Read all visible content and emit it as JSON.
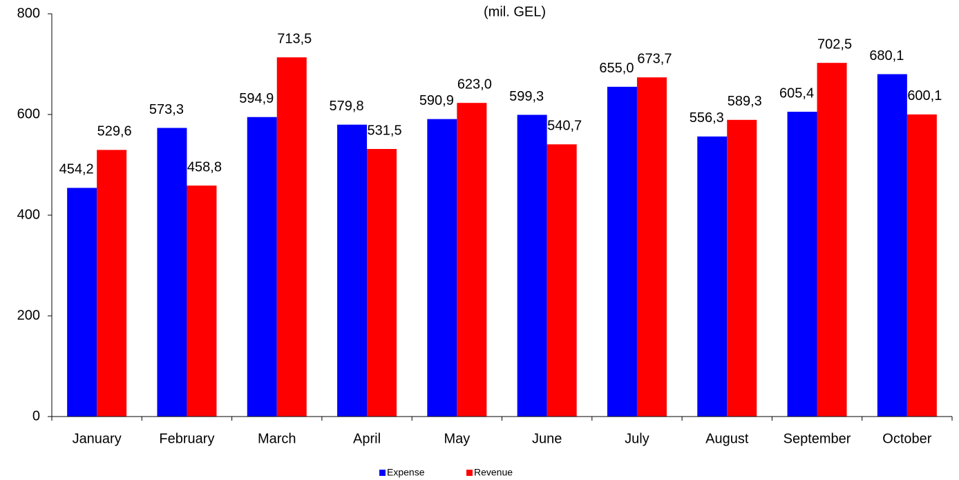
{
  "chart_data": {
    "type": "bar",
    "title": "(mil. GEL)",
    "categories": [
      "January",
      "February",
      "March",
      "April",
      "May",
      "June",
      "July",
      "August",
      "September",
      "October"
    ],
    "series": [
      {
        "name": "Expense",
        "color": "#0000ff",
        "values": [
          454.2,
          573.3,
          594.9,
          579.8,
          590.9,
          599.3,
          655.0,
          556.3,
          605.4,
          680.1
        ],
        "value_labels": [
          "454,2",
          "573,3",
          "594,9",
          "579,8",
          "590,9",
          "599,3",
          "655,0",
          "556,3",
          "605,4",
          "680,1"
        ]
      },
      {
        "name": "Revenue",
        "color": "#ff0000",
        "values": [
          529.6,
          458.8,
          713.5,
          531.5,
          623.0,
          540.7,
          673.7,
          589.3,
          702.5,
          600.1
        ],
        "value_labels": [
          "529,6",
          "458,8",
          "713,5",
          "531,5",
          "623,0",
          "540,7",
          "673,7",
          "589,3",
          "702,5",
          "600,1"
        ]
      }
    ],
    "ylim": [
      0,
      800
    ],
    "yticks": [
      0,
      200,
      400,
      600,
      800
    ],
    "grid": false,
    "legend": "bottom"
  }
}
